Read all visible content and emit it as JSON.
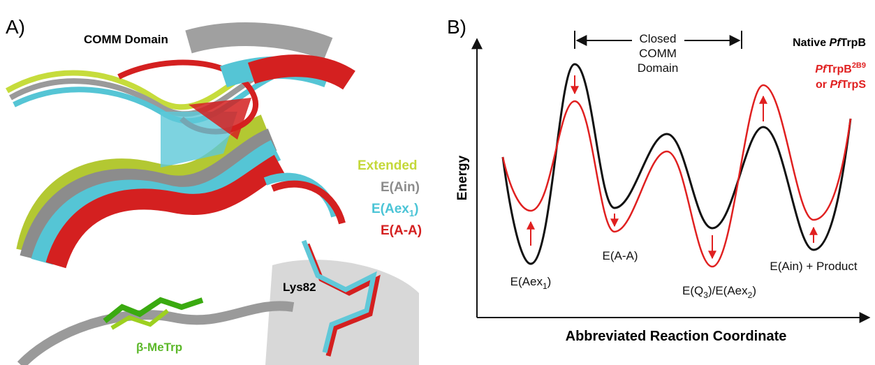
{
  "panel_a": {
    "letter": "A)",
    "title": "COMM Domain",
    "legend": {
      "extended": "Extended",
      "ain": "E(Ain)",
      "aex1": [
        "E(Aex",
        "1",
        ")"
      ],
      "aa": "E(A-A)"
    },
    "residue": "Lys82",
    "ligand": "β-MeTrp"
  },
  "panel_b": {
    "letter": "B)",
    "bracket": [
      "Closed",
      "COMM",
      "Domain"
    ],
    "native": [
      "Native ",
      "Pf",
      "TrpB"
    ],
    "variant": [
      "Pf",
      "TrpB",
      "2B9",
      "or ",
      "Pf",
      "TrpS"
    ],
    "y_axis": "Energy",
    "x_axis": "Abbreviated Reaction Coordinate",
    "states": {
      "aex1": [
        "E(Aex",
        "1",
        ")"
      ],
      "aa": "E(A-A)",
      "q3": [
        "E(Q",
        "3",
        ")/E(Aex",
        "2",
        ")"
      ],
      "ain": "E(Ain) + Product"
    }
  }
}
